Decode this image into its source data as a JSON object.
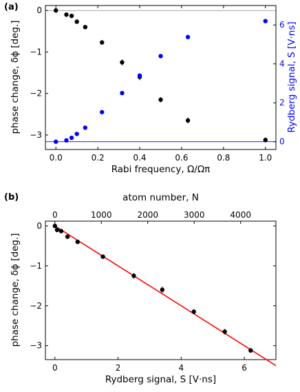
{
  "chart_data": [
    {
      "type": "scatter",
      "panel_label": "(a)",
      "xlabel": "Rabi frequency, Ω/Ωπ",
      "xlim": [
        -0.05,
        1.05
      ],
      "xticks": [
        0.0,
        0.2,
        0.4,
        0.6,
        0.8,
        1.0
      ],
      "xtick_labels": [
        "0.0",
        "0.2",
        "0.4",
        "0.6",
        "0.8",
        "1.0"
      ],
      "y_left": {
        "label": "phase change, δϕ [deg.]",
        "lim": [
          -3.35,
          0.12
        ],
        "ticks": [
          0,
          -1,
          -2,
          -3
        ],
        "tick_labels": [
          "0",
          "−1",
          "−2",
          "−3"
        ],
        "reference_line": 0
      },
      "y_right": {
        "label": "Rydberg signal, S [V·ns]",
        "lim": [
          -0.4,
          7.0
        ],
        "ticks": [
          0,
          2,
          4,
          6
        ],
        "tick_labels": [
          "0",
          "2",
          "4",
          "6"
        ],
        "reference_line": 0,
        "color": "#0000ff"
      },
      "series": [
        {
          "axis": "left",
          "color": "#000000",
          "x": [
            0.0,
            0.05,
            0.075,
            0.1,
            0.14,
            0.22,
            0.316,
            0.4,
            0.5,
            0.63,
            1.0
          ],
          "y": [
            0.0,
            -0.1,
            -0.13,
            -0.27,
            -0.4,
            -0.77,
            -1.25,
            -1.6,
            -2.15,
            -2.65,
            -3.12
          ],
          "yerr": [
            0.04,
            0.04,
            0.04,
            0.04,
            0.05,
            0.05,
            0.07,
            0.08,
            0.06,
            0.07,
            0.06
          ]
        },
        {
          "axis": "right",
          "color": "#0000ff",
          "x": [
            0.0,
            0.05,
            0.075,
            0.1,
            0.14,
            0.22,
            0.316,
            0.4,
            0.5,
            0.63,
            1.0
          ],
          "y": [
            0.0,
            0.07,
            0.2,
            0.4,
            0.72,
            1.52,
            2.5,
            3.4,
            4.4,
            5.38,
            6.2
          ]
        }
      ]
    },
    {
      "type": "scatter",
      "panel_label": "(b)",
      "xlabel": "Rydberg signal, S [V·ns]",
      "xlim": [
        -0.3,
        7.0
      ],
      "xticks": [
        0,
        2,
        4,
        6
      ],
      "xtick_labels": [
        "0",
        "2",
        "4",
        "6"
      ],
      "x_top": {
        "label": "atom number, N",
        "ticks": [
          0,
          1000,
          2000,
          3000,
          4000
        ],
        "tick_labels": [
          "0",
          "1000",
          "2000",
          "3000",
          "4000"
        ],
        "atoms_per_signal_unit": 680
      },
      "ylabel": "phase change, δϕ [deg.]",
      "ylim": [
        -3.35,
        0.12
      ],
      "yticks": [
        0,
        -1,
        -2,
        -3
      ],
      "ytick_labels": [
        "0",
        "−1",
        "−2",
        "−3"
      ],
      "series": [
        {
          "color": "#000000",
          "x": [
            0.0,
            0.07,
            0.2,
            0.4,
            0.72,
            1.52,
            2.5,
            3.4,
            4.4,
            5.38,
            6.2
          ],
          "y": [
            0.0,
            -0.1,
            -0.13,
            -0.27,
            -0.4,
            -0.77,
            -1.25,
            -1.6,
            -2.15,
            -2.65,
            -3.12
          ],
          "yerr": [
            0.04,
            0.04,
            0.04,
            0.04,
            0.05,
            0.05,
            0.07,
            0.08,
            0.06,
            0.07,
            0.06
          ]
        }
      ],
      "fit_line": {
        "color": "#ff0000",
        "slope": -0.5,
        "intercept": 0.0
      }
    }
  ]
}
